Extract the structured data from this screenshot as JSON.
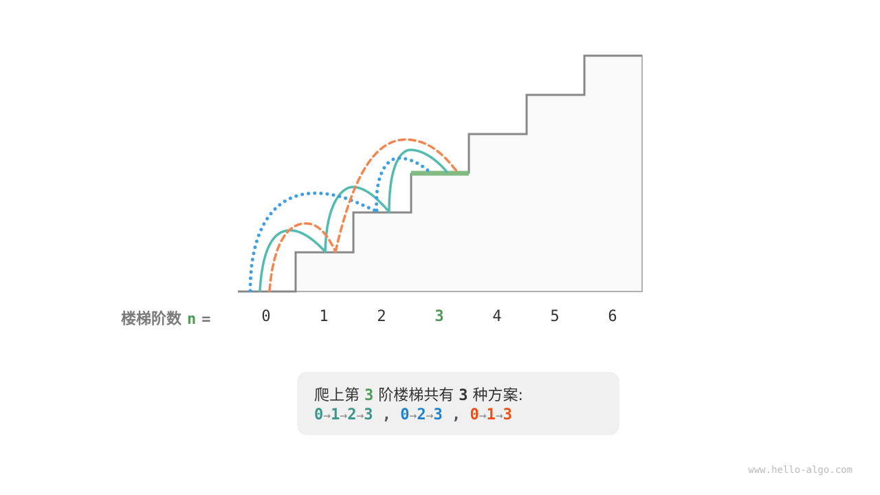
{
  "axis": {
    "title": "楼梯阶数",
    "var": "n",
    "eq": "=",
    "labels": [
      "0",
      "1",
      "2",
      "3",
      "4",
      "5",
      "6"
    ],
    "target": 3
  },
  "summary": {
    "prefix": "爬上第 ",
    "n": "3",
    "mid": " 阶楼梯共有 ",
    "count": "3",
    "suffix": " 种方案:",
    "paths": [
      {
        "steps": [
          "0",
          "1",
          "2",
          "3"
        ],
        "color": "#3a968a"
      },
      {
        "steps": [
          "0",
          "2",
          "3"
        ],
        "color": "#1a82d0"
      },
      {
        "steps": [
          "0",
          "1",
          "3"
        ],
        "color": "#f04e12"
      }
    ],
    "separator": ",",
    "arrow": "→"
  },
  "colors": {
    "solid": "#52bbb0",
    "dotted": "#3d9ee6",
    "dashed": "#f5844e",
    "target": "#82bb82",
    "stairs": "#888888"
  },
  "watermark": "www.hello-algo.com"
}
